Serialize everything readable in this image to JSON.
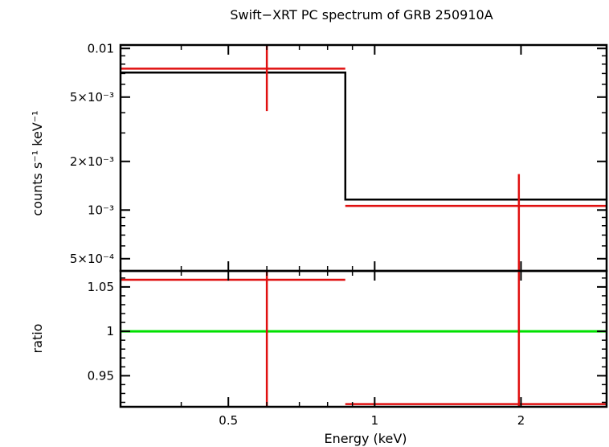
{
  "chart_data": [
    {
      "type": "line",
      "title": "Swift−XRT PC spectrum of GRB 250910A",
      "xscale": "log",
      "yscale": "log",
      "xlim": [
        0.3,
        3.0
      ],
      "ylim": [
        0.00042,
        0.0105
      ],
      "ylabel": "counts s⁻¹ keV⁻¹",
      "y_ticks": [
        {
          "value": 0.01,
          "label": "0.01"
        },
        {
          "value": 0.005,
          "label": "5×10⁻³"
        },
        {
          "value": 0.002,
          "label": "2×10⁻³"
        },
        {
          "value": 0.001,
          "label": "10⁻³"
        },
        {
          "value": 0.0005,
          "label": "5×10⁻⁴"
        }
      ],
      "series": [
        {
          "role": "data",
          "color": "#e01010",
          "points": [
            {
              "x": 0.6,
              "xlo": 0.3,
              "xhi": 0.87,
              "y": 0.0075,
              "ylo": 0.0041,
              "yhi": 0.0105
            },
            {
              "x": 1.98,
              "xlo": 0.87,
              "xhi": 3.0,
              "y": 0.00106,
              "ylo": 0.00042,
              "yhi": 0.00167
            }
          ]
        },
        {
          "role": "model",
          "color": "#000000",
          "steps": [
            {
              "x0": 0.3,
              "x1": 0.87,
              "y": 0.0071
            },
            {
              "x0": 0.87,
              "x1": 3.0,
              "y": 0.00116
            }
          ]
        }
      ]
    },
    {
      "type": "line",
      "xscale": "log",
      "xlim": [
        0.3,
        3.0
      ],
      "ylim": [
        0.915,
        1.068
      ],
      "xlabel": "Energy (keV)",
      "ylabel": "ratio",
      "x_ticks": [
        {
          "value": 0.5,
          "label": "0.5"
        },
        {
          "value": 1,
          "label": "1"
        },
        {
          "value": 2,
          "label": "2"
        }
      ],
      "y_ticks": [
        {
          "value": 1.05,
          "label": "1.05"
        },
        {
          "value": 1.0,
          "label": "1"
        },
        {
          "value": 0.95,
          "label": "0.95"
        }
      ],
      "reference_line": {
        "y": 1.0,
        "color": "#00e000"
      },
      "series": [
        {
          "role": "data",
          "color": "#e01010",
          "points": [
            {
              "x": 0.6,
              "xlo": 0.3,
              "xhi": 0.87,
              "y": 1.058,
              "ylo": 0.915,
              "yhi": 1.068
            },
            {
              "x": 1.98,
              "xlo": 0.87,
              "xhi": 3.0,
              "y": 0.918,
              "ylo": 0.915,
              "yhi": 1.068
            }
          ]
        }
      ]
    }
  ]
}
